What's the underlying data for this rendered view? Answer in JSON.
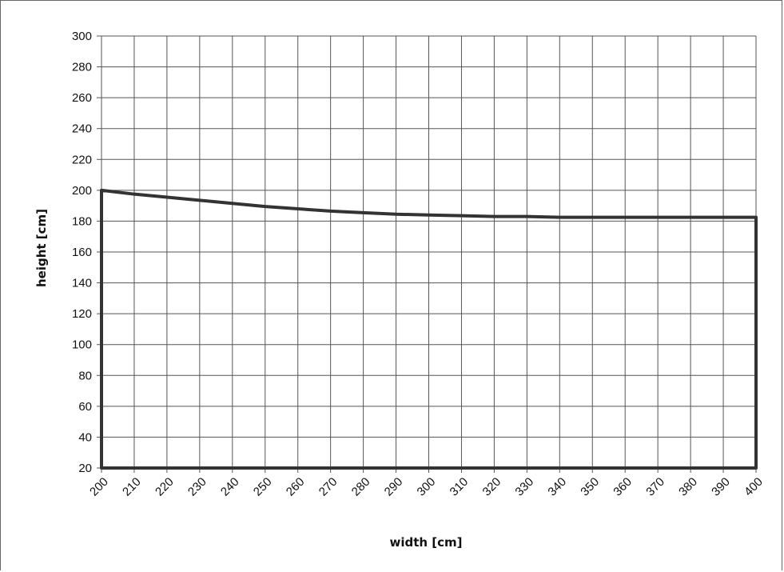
{
  "chart_data": {
    "type": "area",
    "title": "",
    "xlabel": "width [cm]",
    "ylabel": "height [cm]",
    "xlim": [
      200,
      400
    ],
    "ylim": [
      20,
      300
    ],
    "x_ticks": [
      "200",
      "210",
      "220",
      "230",
      "240",
      "250",
      "260",
      "270",
      "280",
      "290",
      "300",
      "310",
      "320",
      "330",
      "340",
      "350",
      "360",
      "370",
      "380",
      "390",
      "400"
    ],
    "y_ticks": [
      "300",
      "280",
      "260",
      "240",
      "220",
      "200",
      "180",
      "160",
      "140",
      "120",
      "100",
      "80",
      "60",
      "40",
      "20"
    ],
    "grid": true,
    "legend": "none",
    "series": [
      {
        "x": [
          200,
          210,
          220,
          230,
          240,
          250,
          260,
          270,
          280,
          290,
          300,
          310,
          320,
          330,
          340,
          350,
          360,
          370,
          380,
          390,
          400
        ],
        "y": [
          200,
          197.5,
          195.5,
          193.5,
          191.5,
          189.5,
          188,
          186.5,
          185.5,
          184.5,
          184,
          183.5,
          183,
          183,
          182.5,
          182.5,
          182.5,
          182.5,
          182.5,
          182.5,
          182.5
        ]
      }
    ],
    "colors": {
      "line": "#333333",
      "grid": "#555555",
      "text": "#111111"
    }
  }
}
